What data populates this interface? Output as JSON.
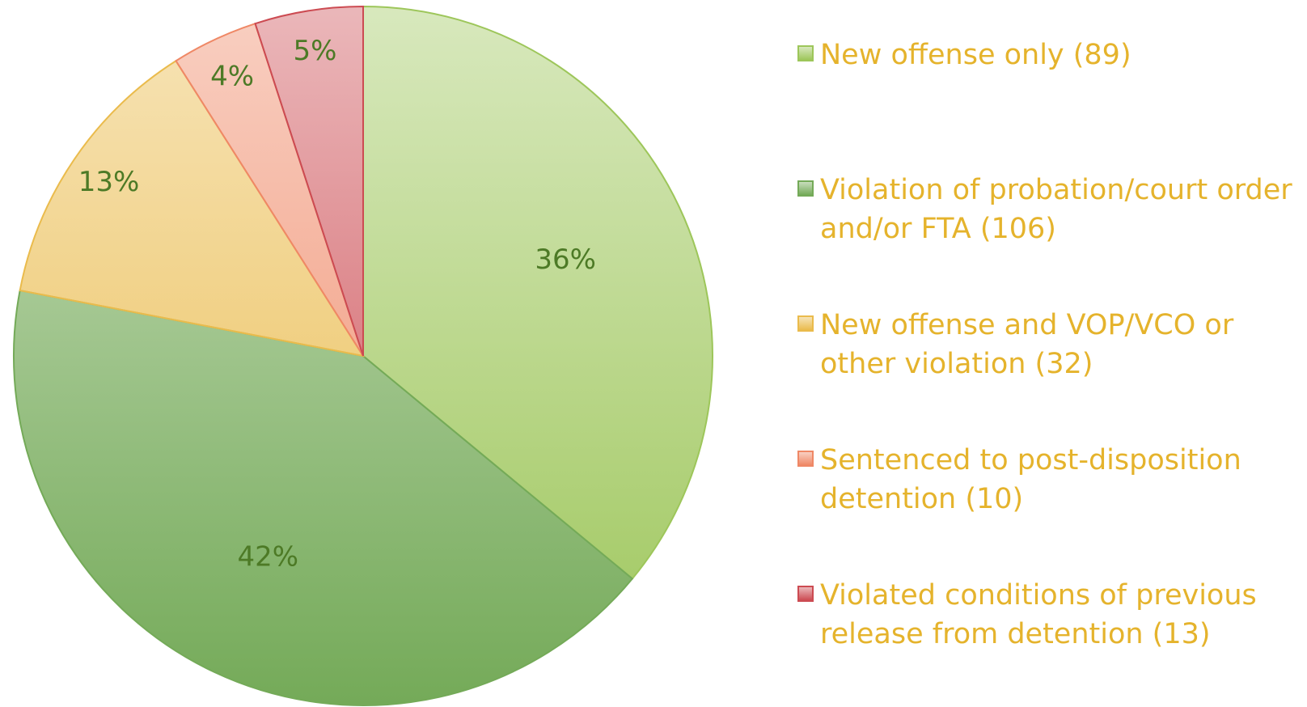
{
  "chart_data": {
    "type": "pie",
    "categories": [
      "New offense only (89)",
      "Violation of probation/court order and/or FTA (106)",
      "New offense and VOP/VCO or other violation (32)",
      "Sentenced to post-disposition detention (10)",
      "Violated conditions of previous release from detention (13)"
    ],
    "values": [
      36,
      42,
      13,
      4,
      5
    ],
    "value_labels": [
      "36%",
      "42%",
      "13%",
      "4%",
      "5%"
    ],
    "colors": [
      "#9dc65a",
      "#74aa58",
      "#eabb4c",
      "#ef8866",
      "#cc4b52"
    ]
  }
}
